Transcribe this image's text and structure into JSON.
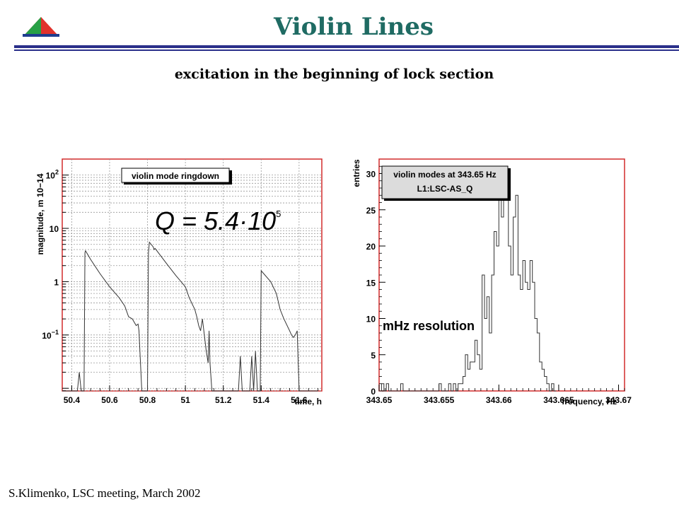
{
  "slide": {
    "title": "Violin Lines",
    "subtitle": "excitation in the beginning of lock section",
    "footer": "S.Klimenko, LSC meeting, March 2002"
  },
  "colors": {
    "title": "#1f6b63",
    "rule": "#2a2f8a",
    "frame_red": "#d22b2b",
    "grid": "#999999",
    "logo_red": "#e0322c",
    "logo_green": "#27a046",
    "logo_blue": "#1e3d8f"
  },
  "annotations": {
    "q_formula": "Q = 5.4·10",
    "q_exponent": "5",
    "resolution": "mHz resolution"
  },
  "chart_data": [
    {
      "type": "line",
      "legend_box": "violin mode ringdown",
      "title": "",
      "xlabel": "time, h",
      "ylabel": "magnitude, m 10−14",
      "xlim": [
        50.35,
        51.72
      ],
      "ylim_log10": [
        -2.05,
        2.3
      ],
      "yscale": "log",
      "grid": true,
      "x_ticks": [
        "50.4",
        "50.6",
        "50.8",
        "51",
        "51.2",
        "51.4",
        "51.6"
      ],
      "x_tick_values": [
        50.4,
        50.6,
        50.8,
        51.0,
        51.2,
        51.4,
        51.6
      ],
      "y_ticks": [
        {
          "base": "10",
          "exp": "−1",
          "value": 0.1
        },
        {
          "base": "1",
          "exp": "",
          "value": 1
        },
        {
          "base": "10",
          "exp": "",
          "value": 10
        },
        {
          "base": "10",
          "exp": "2",
          "value": 100
        }
      ],
      "series": [
        {
          "x": [
            50.35,
            50.43,
            50.44,
            50.45,
            50.46,
            50.465,
            50.47,
            50.473,
            50.5,
            50.55,
            50.6,
            50.65,
            50.68,
            50.7,
            50.72,
            50.74,
            50.75,
            50.755,
            50.76,
            50.77,
            50.8,
            50.805,
            50.81,
            50.83,
            50.835,
            50.84,
            50.9,
            50.95,
            51.0,
            51.02,
            51.05,
            51.06,
            51.07,
            51.08,
            51.09,
            51.1,
            51.11,
            51.12,
            51.125,
            51.13,
            51.14,
            51.15,
            51.16,
            51.2,
            51.25,
            51.28,
            51.29,
            51.3,
            51.31,
            51.32,
            51.33,
            51.34,
            51.35,
            51.36,
            51.37,
            51.38,
            51.39,
            51.395,
            51.4,
            51.45,
            51.48,
            51.5,
            51.52,
            51.55,
            51.56,
            51.57,
            51.58,
            51.59,
            51.6,
            51.7
          ],
          "y": [
            0.006,
            0.006,
            0.02,
            0.006,
            0.006,
            0.006,
            3.5,
            3.8,
            2.6,
            1.4,
            0.8,
            0.5,
            0.35,
            0.22,
            0.2,
            0.15,
            0.16,
            0.12,
            0.05,
            0.006,
            0.006,
            3.5,
            5.5,
            4.5,
            4.0,
            4.2,
            2.2,
            1.3,
            0.8,
            0.5,
            0.3,
            0.22,
            0.15,
            0.12,
            0.2,
            0.1,
            0.05,
            0.03,
            0.12,
            0.03,
            0.006,
            0.006,
            0.006,
            0.006,
            0.006,
            0.006,
            0.04,
            0.006,
            0.006,
            0.006,
            0.006,
            0.006,
            0.04,
            0.006,
            0.05,
            0.006,
            0.006,
            0.006,
            1.6,
            1.0,
            0.6,
            0.3,
            0.2,
            0.12,
            0.1,
            0.09,
            0.1,
            0.12,
            0.006,
            0.006
          ]
        }
      ]
    },
    {
      "type": "bar",
      "legend_box": [
        "violin modes at 343.65 Hz",
        "L1:LSC-AS_Q"
      ],
      "title": "",
      "xlabel": "frequency, Hz",
      "ylabel": "entries",
      "xlim": [
        343.65,
        343.6705
      ],
      "ylim": [
        0,
        32
      ],
      "grid": false,
      "x_ticks": [
        "343.65",
        "343.655",
        "343.66",
        "343.665",
        "343.67"
      ],
      "x_tick_values": [
        343.65,
        343.655,
        343.66,
        343.665,
        343.67
      ],
      "y_ticks": [
        "0",
        "5",
        "10",
        "15",
        "20",
        "25",
        "30"
      ],
      "y_tick_values": [
        0,
        5,
        10,
        15,
        20,
        25,
        30
      ],
      "bin_start": 343.65,
      "bin_width": 0.0002,
      "values": [
        0,
        1,
        0,
        1,
        0,
        0,
        0,
        0,
        0,
        1,
        0,
        0,
        0,
        0,
        0,
        0,
        0,
        0,
        0,
        0,
        0,
        0,
        0,
        0,
        0,
        1,
        0,
        0,
        0,
        1,
        0,
        1,
        0,
        1,
        1,
        2,
        5,
        3,
        4,
        4,
        7,
        5,
        3,
        16,
        10,
        13,
        8,
        16,
        22,
        20,
        27,
        24,
        30,
        28,
        20,
        16,
        24,
        27,
        16,
        14,
        18,
        15,
        14,
        18,
        15,
        10,
        8,
        4,
        3,
        2,
        1,
        0,
        1,
        0
      ]
    }
  ]
}
